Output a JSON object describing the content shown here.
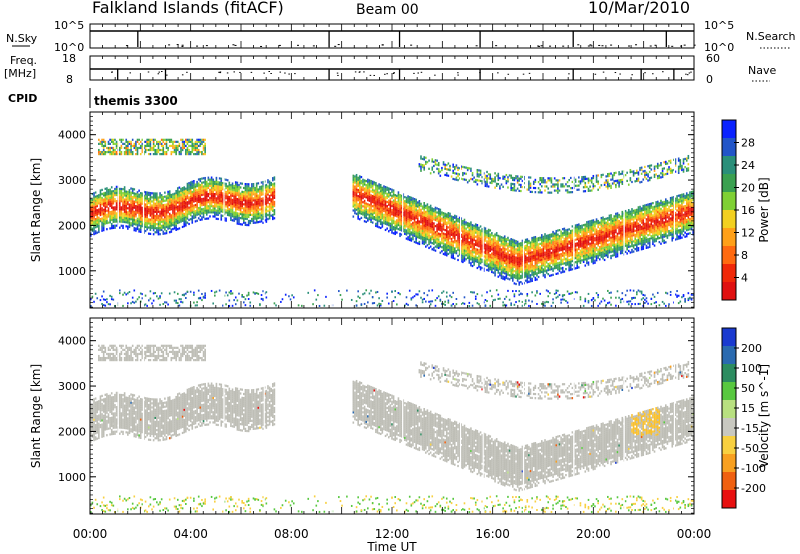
{
  "header": {
    "station": "Falkland Islands (fitACF)",
    "beam": "Beam 00",
    "date": "10/Mar/2010"
  },
  "strips": {
    "nsky_label": "N.Sky",
    "nsky_top": "10^5",
    "nsky_bottom": "10^0",
    "nsearch_label": "N.Search",
    "nsearch_top": "10^5",
    "nsearch_bottom": "10^0",
    "freq_label": "Freq.",
    "freq_unit": "[MHz]",
    "freq_top": "18",
    "freq_bottom": "8",
    "nave_label": "Nave",
    "nave_top": "60",
    "nave_bottom": "0",
    "cpid_label": "CPID",
    "cpid_value": "themis 3300"
  },
  "chart_data": [
    {
      "type": "heatmap",
      "title": "",
      "ylabel": "Slant Range [km]",
      "xlabel": "Time UT",
      "ylim": [
        180,
        4500
      ],
      "yticks": [
        1000,
        2000,
        3000,
        4000
      ],
      "xticks": [
        "00:00",
        "04:00",
        "08:00",
        "12:00",
        "16:00",
        "20:00",
        "00:00"
      ],
      "colorbar": {
        "label": "Power [dB]",
        "ticks": [
          "4",
          "8",
          "12",
          "16",
          "20",
          "24",
          "28"
        ],
        "colors": [
          "#0a22ff",
          "#2255c8",
          "#2a8f7a",
          "#3aa050",
          "#7fd034",
          "#f2d020",
          "#ffa018",
          "#ff6a10",
          "#f02808",
          "#e01010"
        ]
      }
    },
    {
      "type": "heatmap",
      "title": "",
      "ylabel": "Slant Range [km]",
      "xlabel": "Time UT",
      "ylim": [
        180,
        4500
      ],
      "yticks": [
        1000,
        2000,
        3000,
        4000
      ],
      "xticks": [
        "00:00",
        "04:00",
        "08:00",
        "12:00",
        "16:00",
        "20:00",
        "00:00"
      ],
      "colorbar": {
        "label": "Velocity [m s^-1]",
        "ticks": [
          "200",
          "100",
          "50",
          "15",
          "-15",
          "-50",
          "-100",
          "-200"
        ],
        "colors": [
          "#1a3ad0",
          "#2a6ab0",
          "#2c8c60",
          "#58c840",
          "#b8e080",
          "#c8c8c0",
          "#f8d040",
          "#f8a020",
          "#f06010",
          "#e81010"
        ]
      }
    }
  ],
  "colors": {
    "ground_scatter": "#bebeb6"
  }
}
